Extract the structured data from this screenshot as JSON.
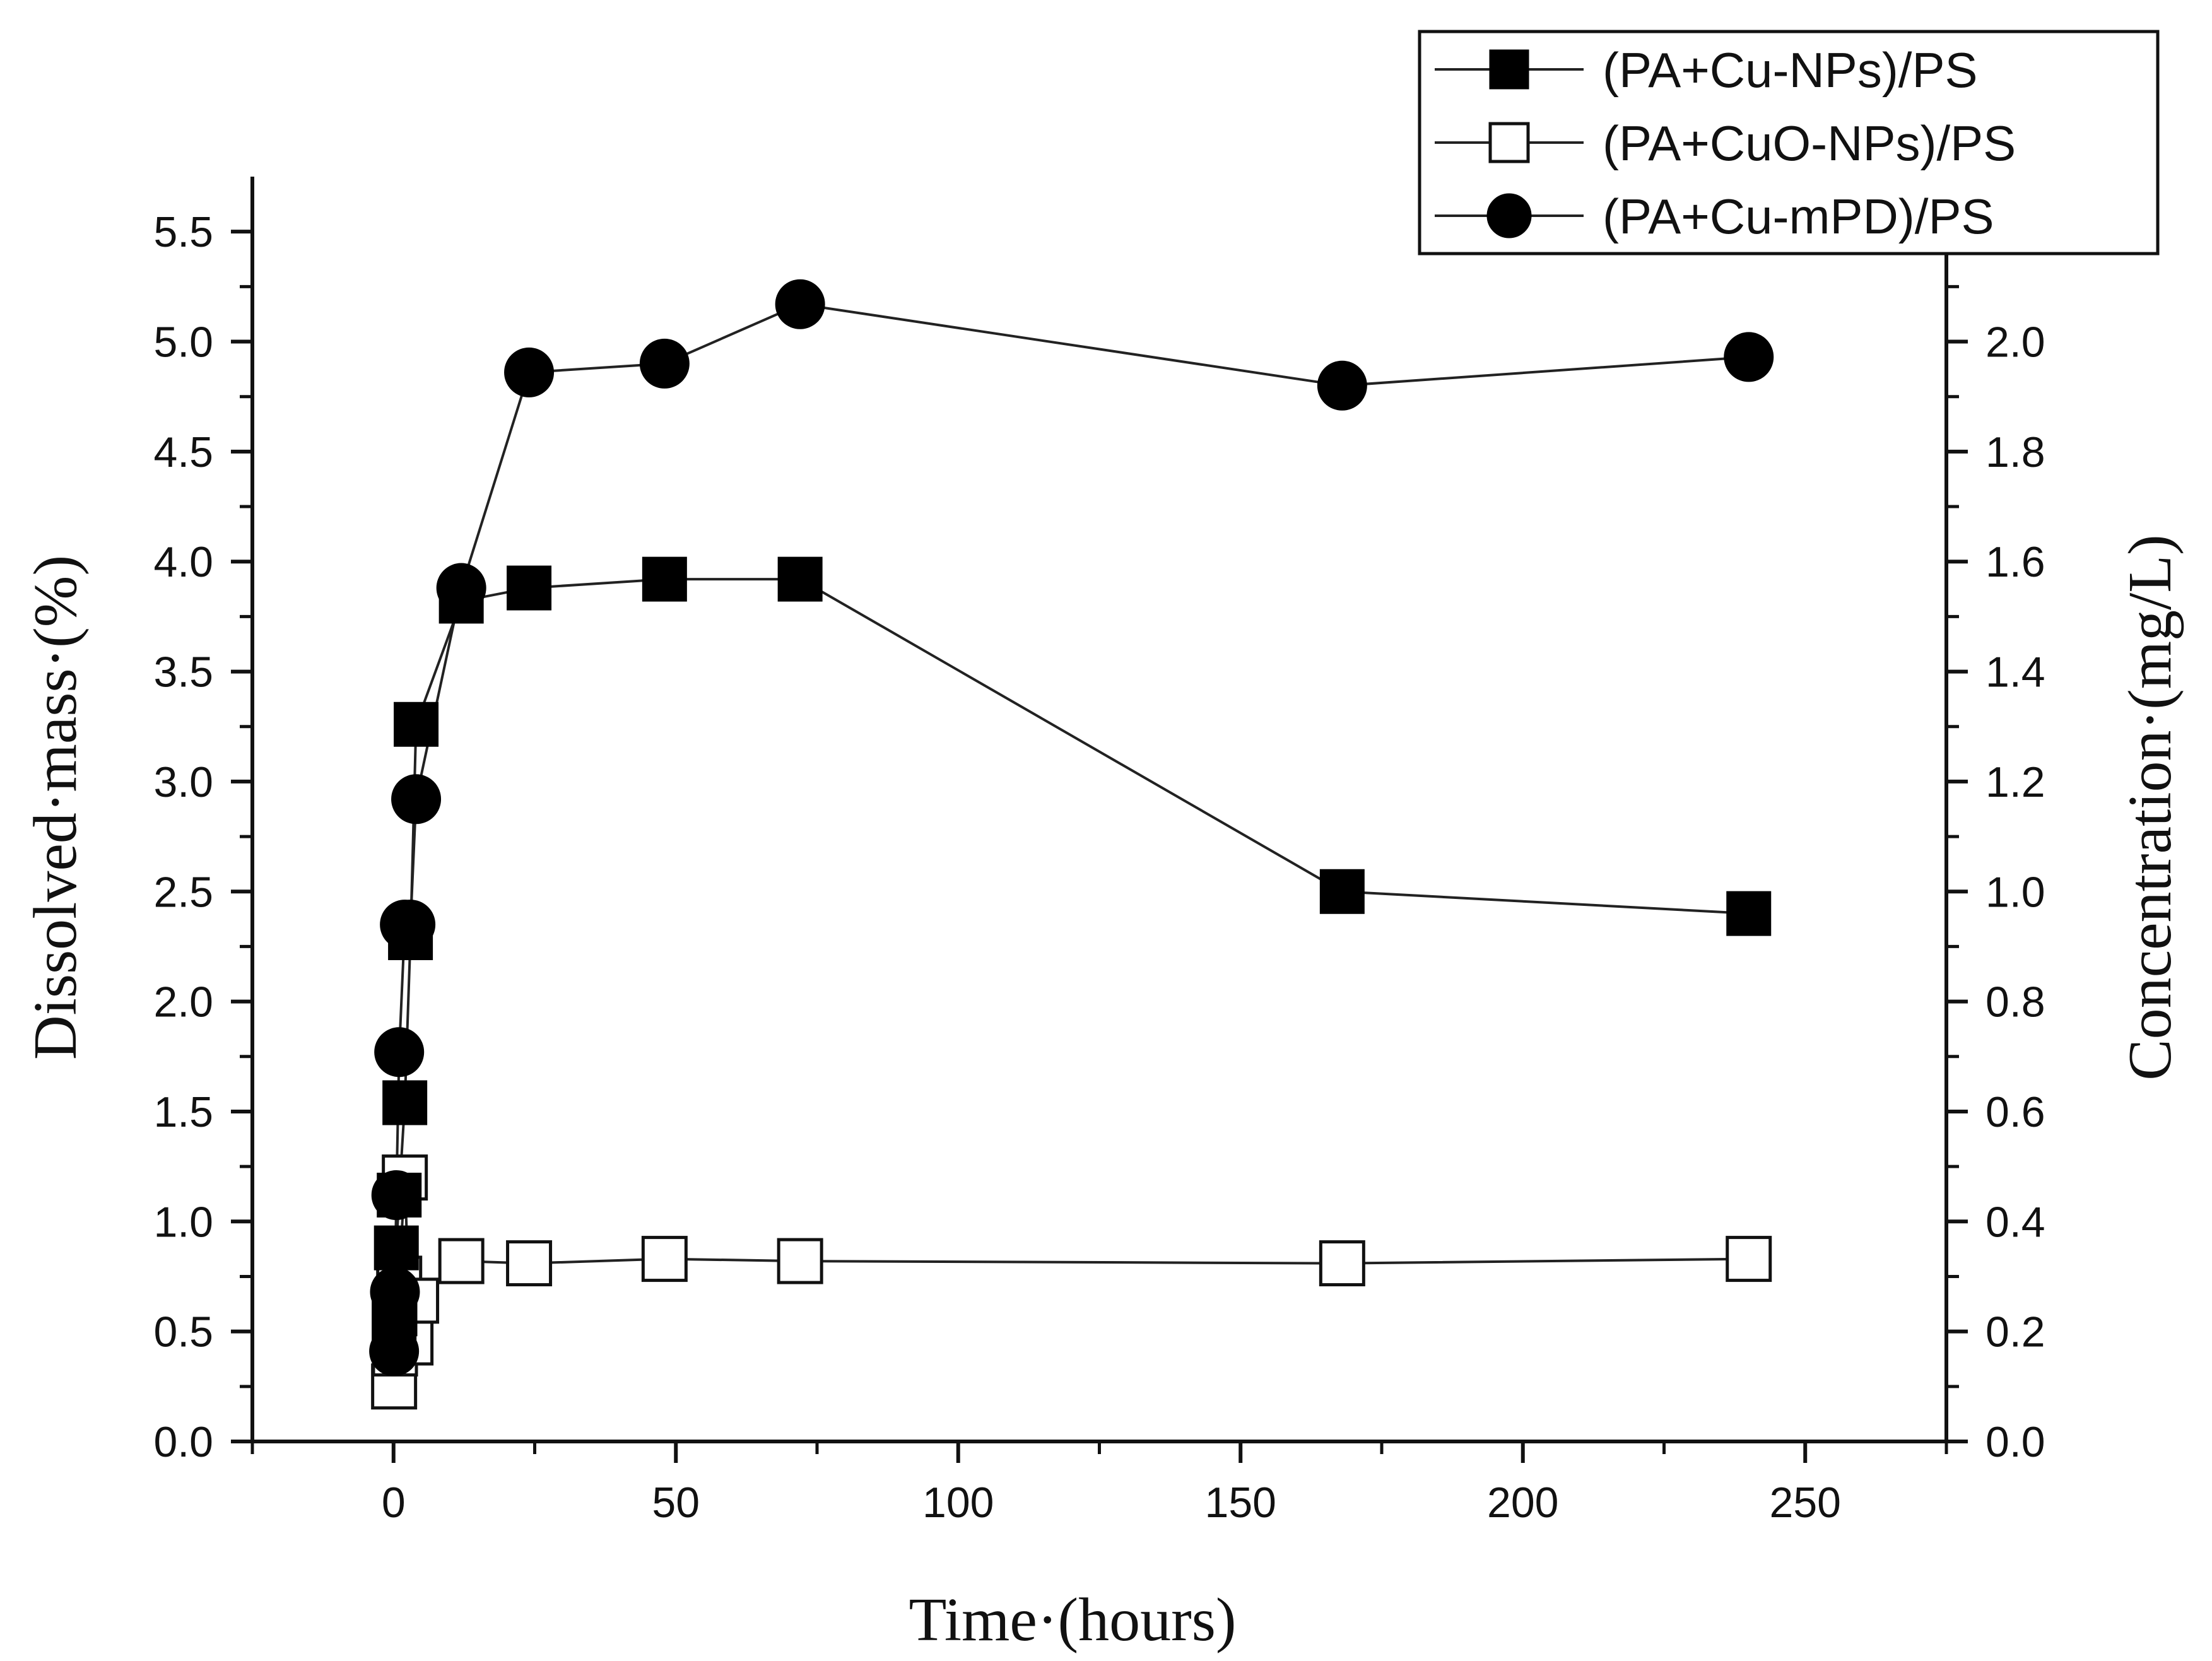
{
  "chart_data": {
    "type": "line",
    "title": "",
    "xlabel": "Time·(hours)",
    "ylabel": "Dissolved·mass·(%)",
    "y2label": "Concentration·(mg/L)",
    "xlim": [
      -25,
      275
    ],
    "ylim": [
      0,
      5.75
    ],
    "y2lim": [
      0,
      2.3
    ],
    "xticks": [
      "0",
      "50",
      "100",
      "150",
      "200",
      "250"
    ],
    "xtick_values": [
      0,
      50,
      100,
      150,
      200,
      250
    ],
    "yticks": [
      "0.0",
      "0.5",
      "1.0",
      "1.5",
      "2.0",
      "2.5",
      "3.0",
      "3.5",
      "4.0",
      "4.5",
      "5.0",
      "5.5"
    ],
    "ytick_values": [
      0,
      0.5,
      1.0,
      1.5,
      2.0,
      2.5,
      3.0,
      3.5,
      4.0,
      4.5,
      5.0,
      5.5
    ],
    "y2ticks": [
      "0.0",
      "0.2",
      "0.4",
      "0.6",
      "0.8",
      "1.0",
      "1.2",
      "1.4",
      "1.6",
      "1.8",
      "2.0"
    ],
    "y2tick_values": [
      0,
      0.2,
      0.4,
      0.6,
      0.8,
      1.0,
      1.2,
      1.4,
      1.6,
      1.8,
      2.0
    ],
    "grid": false,
    "legend_position": "top-right",
    "series": [
      {
        "name": "(PA+Cu-NPs)/PS",
        "marker": "filled-square",
        "x": [
          0.1,
          0.25,
          0.5,
          1,
          2,
          3,
          4,
          12,
          24,
          48,
          72,
          168,
          240
        ],
        "y": [
          0.56,
          0.58,
          0.88,
          1.12,
          1.54,
          2.29,
          3.26,
          3.82,
          3.88,
          3.92,
          3.92,
          2.5,
          2.4
        ]
      },
      {
        "name": "(PA+CuO-NPs)/PS",
        "marker": "open-square",
        "x": [
          0.1,
          0.25,
          0.5,
          1,
          2,
          3,
          4,
          12,
          24,
          48,
          72,
          168,
          240
        ],
        "y": [
          0.25,
          0.4,
          0.62,
          0.74,
          1.2,
          0.45,
          0.64,
          0.82,
          0.81,
          0.83,
          0.82,
          0.81,
          0.83
        ]
      },
      {
        "name": "(PA+Cu-mPD)/PS",
        "marker": "filled-circle",
        "x": [
          0.1,
          0.25,
          0.5,
          1,
          2,
          3,
          4,
          12,
          24,
          48,
          72,
          168,
          240
        ],
        "y": [
          0.41,
          0.68,
          1.12,
          1.77,
          2.35,
          2.35,
          2.92,
          3.88,
          4.86,
          4.9,
          5.17,
          4.8,
          4.93
        ]
      }
    ]
  }
}
